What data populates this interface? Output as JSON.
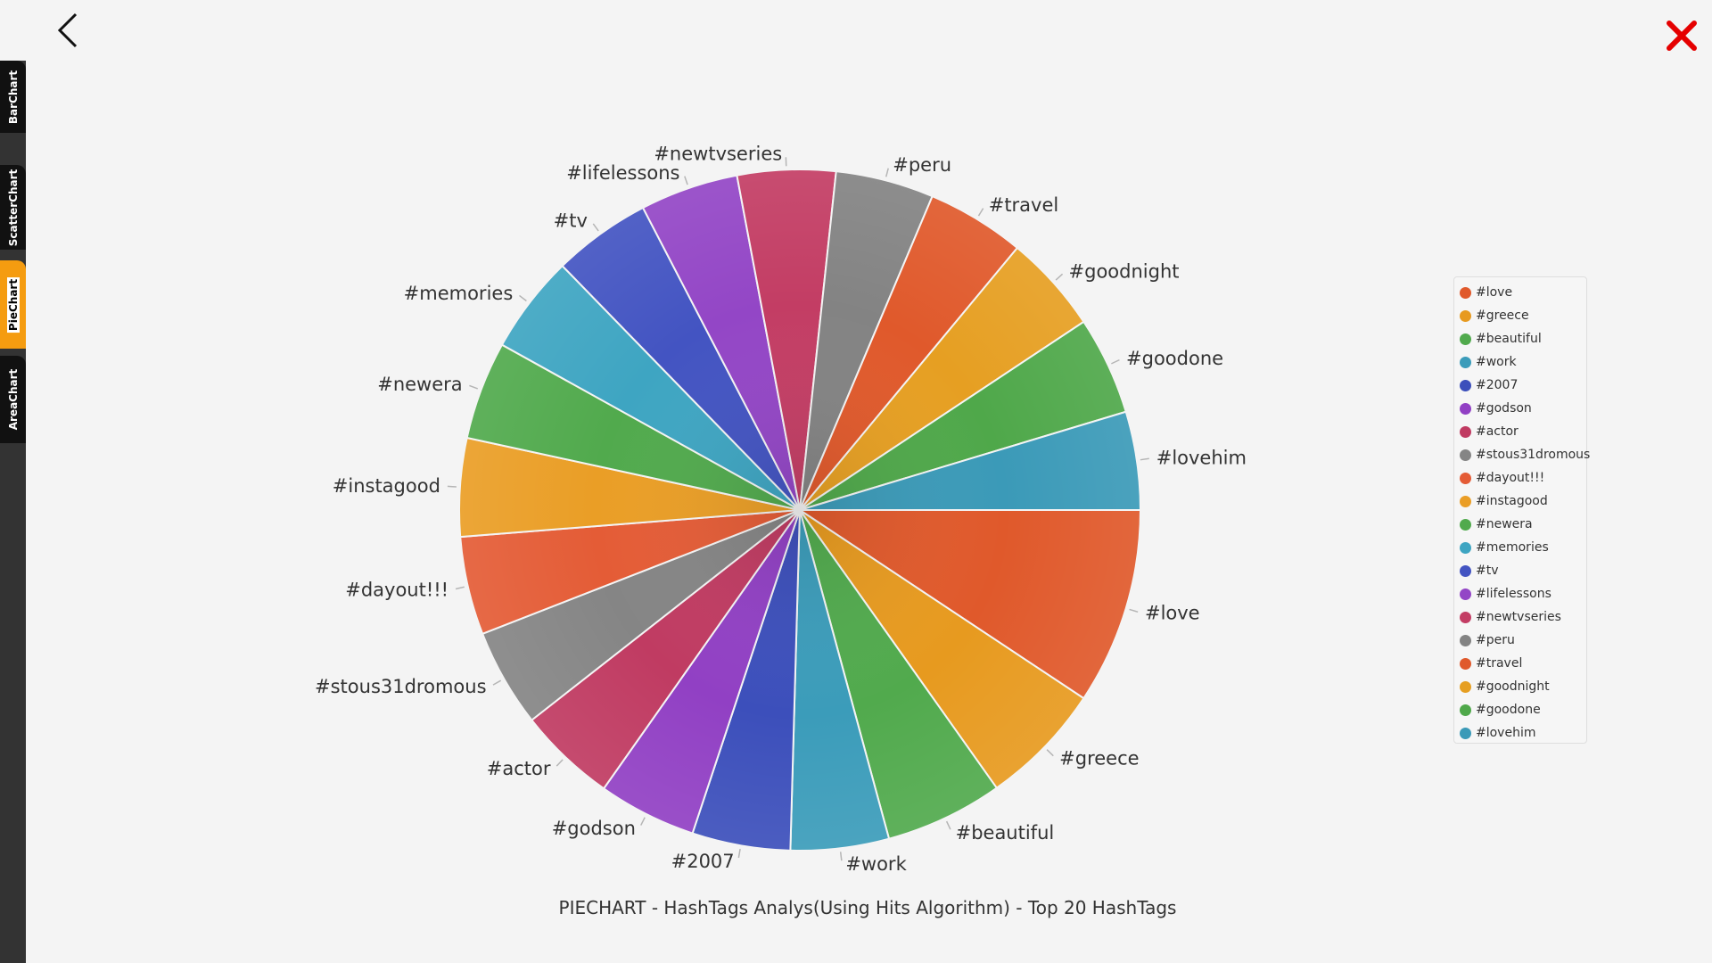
{
  "nav": {
    "tabs": [
      {
        "label": "BarChart",
        "active": false
      },
      {
        "label": "ScatterChart",
        "active": false
      },
      {
        "label": "PieChart",
        "active": true
      },
      {
        "label": "AreaChart",
        "active": false
      }
    ]
  },
  "colors": {
    "accent": "#f59c10",
    "close": "#e50000"
  },
  "icons": {
    "back": "chevron-left-icon",
    "close": "close-x-icon"
  },
  "chart_data": {
    "type": "pie",
    "title": "PIECHART - HashTags Analys(Using Hits Algorithm) - Top 20 HashTags",
    "legend_position": "right",
    "slices": [
      {
        "label": "#love",
        "value": 10,
        "color": "#e0592b"
      },
      {
        "label": "#greece",
        "value": 6.3,
        "color": "#e79a1f"
      },
      {
        "label": "#beautiful",
        "value": 6,
        "color": "#51aa4d"
      },
      {
        "label": "#work",
        "value": 5,
        "color": "#3b9cba"
      },
      {
        "label": "#2007",
        "value": 5,
        "color": "#3c4fbb"
      },
      {
        "label": "#godson",
        "value": 5,
        "color": "#9140c4"
      },
      {
        "label": "#actor",
        "value": 5,
        "color": "#c03b62"
      },
      {
        "label": "#stous31dromous",
        "value": 5,
        "color": "#858585"
      },
      {
        "label": "#dayout!!!",
        "value": 5,
        "color": "#e45c36"
      },
      {
        "label": "#instagood",
        "value": 5,
        "color": "#ea9e26"
      },
      {
        "label": "#newera",
        "value": 5,
        "color": "#51aa4d"
      },
      {
        "label": "#memories",
        "value": 5,
        "color": "#3ea5c2"
      },
      {
        "label": "#tv",
        "value": 5,
        "color": "#4354c2"
      },
      {
        "label": "#lifelessons",
        "value": 5,
        "color": "#9346c6"
      },
      {
        "label": "#newtvseries",
        "value": 5,
        "color": "#c33d64"
      },
      {
        "label": "#peru",
        "value": 5,
        "color": "#838383"
      },
      {
        "label": "#travel",
        "value": 5,
        "color": "#e0592b"
      },
      {
        "label": "#goodnight",
        "value": 5,
        "color": "#e69f22"
      },
      {
        "label": "#goodone",
        "value": 5,
        "color": "#4fa84a"
      },
      {
        "label": "#lovehim",
        "value": 5,
        "color": "#3b9ab8"
      }
    ]
  }
}
